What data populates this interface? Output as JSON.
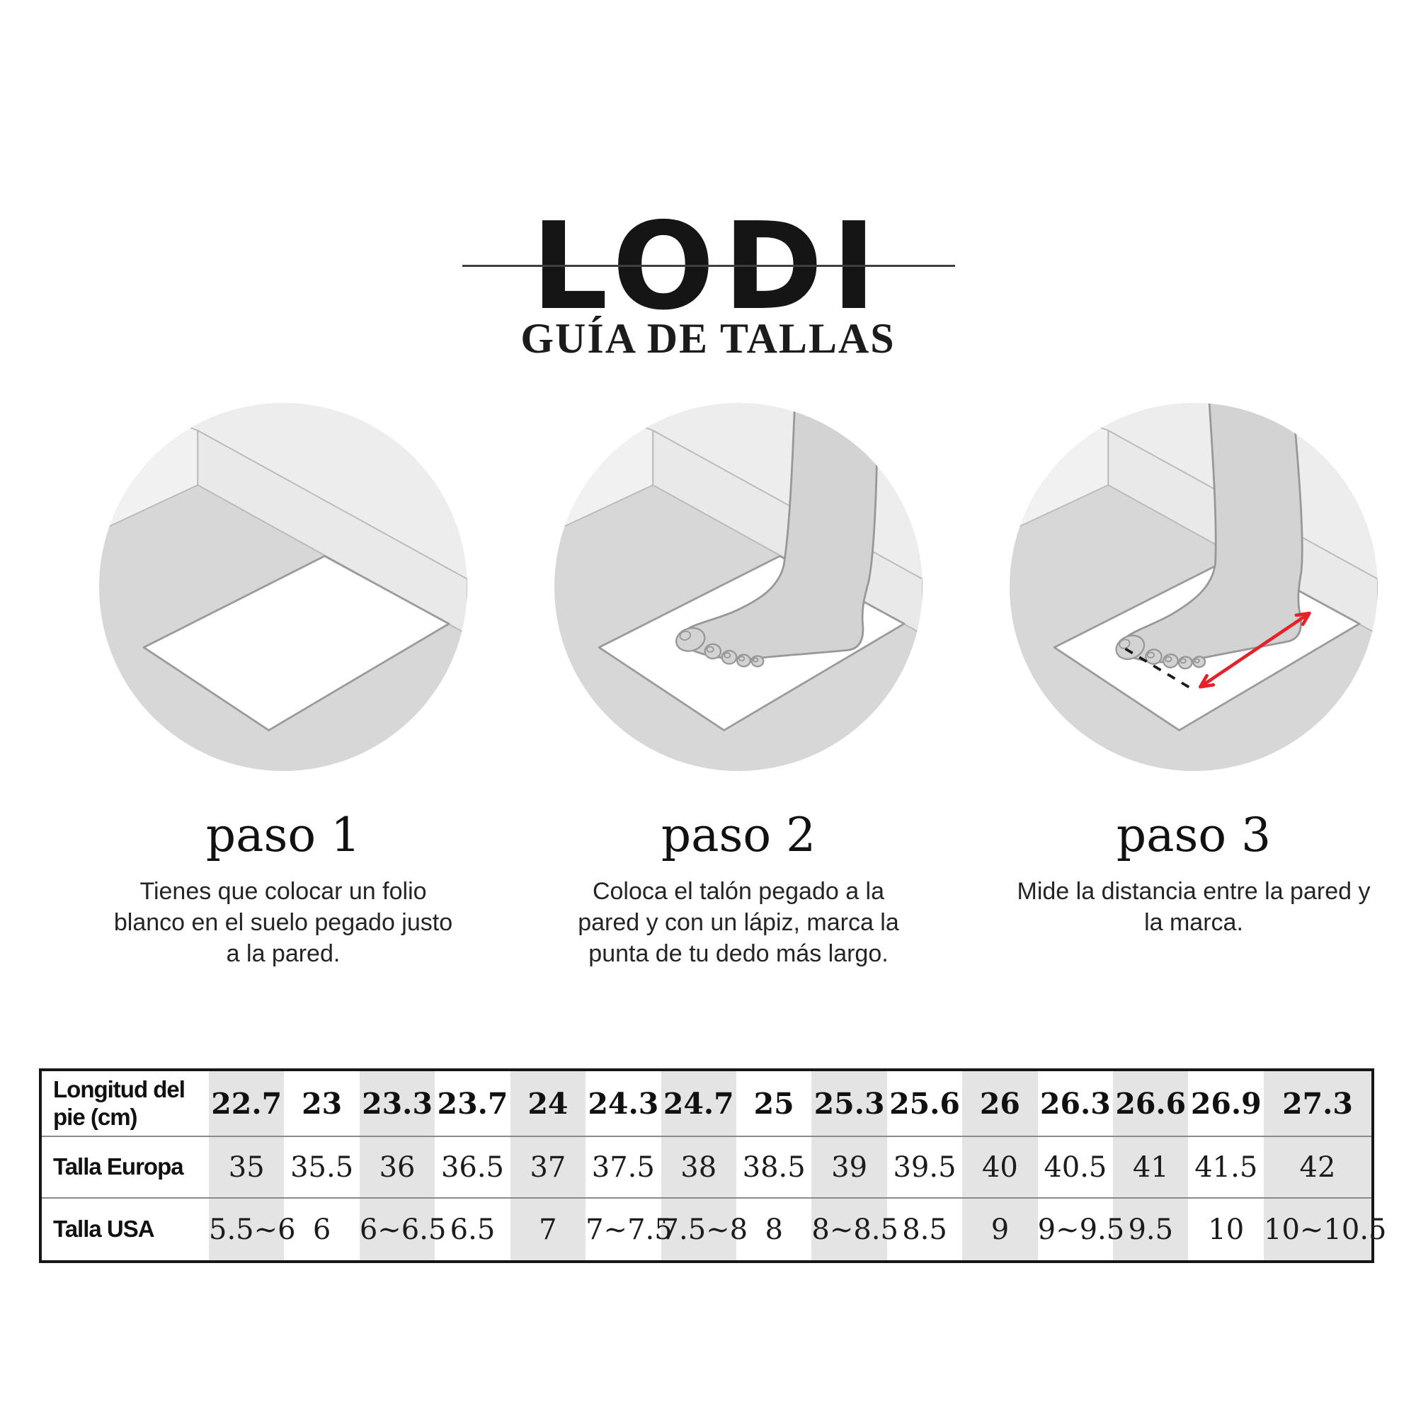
{
  "header": {
    "brand": "LODI",
    "subtitle": "GUÍA DE TALLAS"
  },
  "steps": [
    {
      "title": "paso 1",
      "lines": [
        "Tienes que colocar un folio",
        "blanco en el suelo pegado justo",
        "a la pared."
      ]
    },
    {
      "title": "paso 2",
      "lines": [
        "Coloca el talón pegado a la",
        "pared y con un lápiz, marca la",
        "punta de tu dedo más largo."
      ]
    },
    {
      "title": "paso 3",
      "lines": [
        "Mide la distancia entre la pared y",
        "la marca."
      ]
    }
  ],
  "size_table": {
    "row_headers": [
      "Longitud del pie (cm)",
      "Talla Europa",
      "Talla USA"
    ],
    "foot_length_cm": [
      "22.7",
      "23",
      "23.3",
      "23.7",
      "24",
      "24.3",
      "24.7",
      "25",
      "25.3",
      "25.6",
      "26",
      "26.3",
      "26.6",
      "26.9",
      "27.3"
    ],
    "talla_europa": [
      "35",
      "35.5",
      "36",
      "36.5",
      "37",
      "37.5",
      "38",
      "38.5",
      "39",
      "39.5",
      "40",
      "40.5",
      "41",
      "41.5",
      "42"
    ],
    "talla_usa": [
      "5.5~6",
      "6",
      "6~6.5",
      "6.5",
      "7",
      "7~7.5",
      "7.5~8",
      "8",
      "8~8.5",
      "8.5",
      "9",
      "9~9.5",
      "9.5",
      "10",
      "10~10.5"
    ]
  },
  "colors": {
    "ink": "#1a1a1a",
    "accent_red": "#e62129",
    "table_shade": "#e4e4e4"
  }
}
